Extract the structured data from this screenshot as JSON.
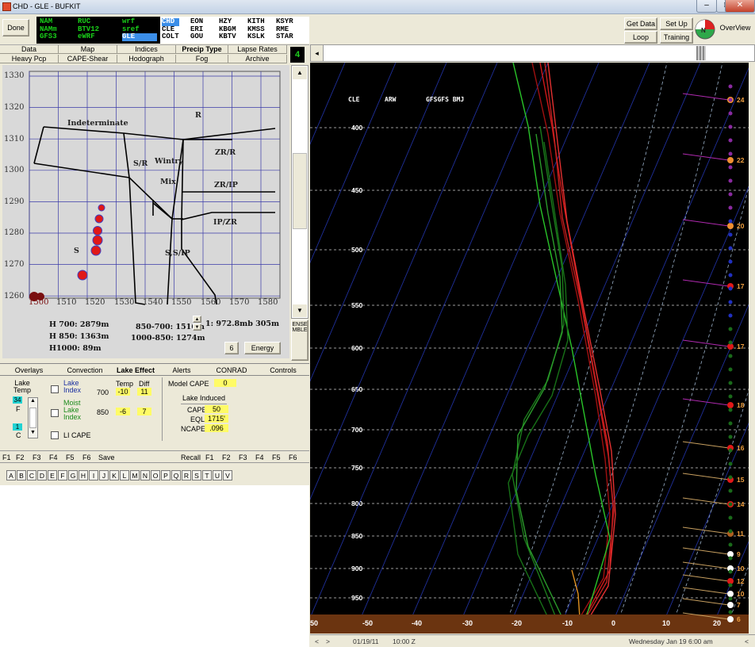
{
  "window": {
    "title": "CHD - GLE - BUFKIT",
    "minimize": "–",
    "maximize": "□",
    "close": "✕"
  },
  "toolbar": {
    "done": "Done",
    "models_col1": [
      "NAM",
      "NAMm",
      "GFS3"
    ],
    "models_col2": [
      "RUC",
      "BTV12",
      "eWRF"
    ],
    "models_col3": [
      "wrf",
      "sref",
      "GLE"
    ],
    "stations_col1": [
      "CHD",
      "CLE",
      "COLT"
    ],
    "stations_col2": [
      "EON",
      "ERI",
      "GOU"
    ],
    "stations_col3": [
      "HZY",
      "KBGM",
      "KBTV"
    ],
    "stations_col4": [
      "KITH",
      "KMSS",
      "KSLK"
    ],
    "stations_col5": [
      "KSYR",
      "RME",
      "STAR"
    ],
    "get_data": "Get Data",
    "loop": "Loop",
    "set_up": "Set Up",
    "training": "Training",
    "overview": "OverView"
  },
  "tabs_row1": [
    "Data",
    "Map",
    "Indices",
    "Precip Type",
    "Lapse Rates"
  ],
  "tabs_row2": [
    "Heavy Pcp",
    "CAPE-Shear",
    "Hodograph",
    "Fog",
    "Archive"
  ],
  "tab_badge": "4",
  "nomogram": {
    "y_ticks": [
      "1330",
      "1320",
      "1310",
      "1300",
      "1290",
      "1280",
      "1270",
      "1260"
    ],
    "x_ticks": [
      "1500",
      "1510",
      "1520",
      "1530",
      "1540",
      "1550",
      "1560",
      "1570",
      "1580"
    ],
    "regions": {
      "indeterminate": "Indeterminate",
      "r": "R",
      "sr": "S/R",
      "wintry": "Wintry",
      "mix": "Mix",
      "zrr": "ZR/R",
      "zrip": "ZR/IP",
      "ipzr": "IP/ZR",
      "ssip": "S,S/IP",
      "s": "S"
    },
    "stats": {
      "h700": "H 700: 2879m",
      "h850": "H 850: 1363m",
      "h1000": "H1000: 89m",
      "t850_700": "850-700: 1516m",
      "t1000_850": "1000-850: 1274m",
      "level": "1: 972.8mb 305m",
      "six": "6",
      "energy": "Energy"
    },
    "ensemble": "ENSEMBLE"
  },
  "lower_tabs": [
    "Overlays",
    "Convection",
    "Lake Effect",
    "Alerts",
    "CONRAD",
    "Controls"
  ],
  "lake": {
    "lake_temp_label": "Lake Temp",
    "f_value": "34",
    "f_unit": "F",
    "c_value": "1",
    "c_unit": "C",
    "lake_index": "Lake Index",
    "moist_lake_index": "Moist Lake Index",
    "li_cape": "LI CAPE",
    "temp_header": "Temp",
    "diff_header": "Diff",
    "row700_label": "700",
    "row700_temp": "-10",
    "row700_diff": "11",
    "row850_label": "850",
    "row850_temp": "-6",
    "row850_diff": "7",
    "model_cape_label": "Model CAPE",
    "model_cape_value": "0",
    "lake_induced": "Lake Induced",
    "cape_label": "CAPE",
    "cape_value": "50",
    "eql_label": "EQL",
    "eql_value": "1715'",
    "ncape_label": "NCAPE",
    "ncape_value": ".096"
  },
  "fkeys_left": [
    "F1",
    "F2",
    "F3",
    "F4",
    "F5",
    "F6"
  ],
  "save": "Save",
  "recall": "Recall",
  "fkeys_right": [
    "F1",
    "F2",
    "F3",
    "F4",
    "F5",
    "F6"
  ],
  "letters": [
    "A",
    "B",
    "C",
    "D",
    "E",
    "F",
    "G",
    "H",
    "I",
    "J",
    "K",
    "L",
    "M",
    "N",
    "O",
    "P",
    "Q",
    "R",
    "S",
    "T",
    "U",
    "V"
  ],
  "skewt": {
    "header": {
      "station": "CLE",
      "model": "ARW",
      "extra": "GFSGFS BMJ"
    },
    "pressure_labels": [
      "400",
      "450",
      "500",
      "550",
      "600",
      "650",
      "700",
      "750",
      "800",
      "850",
      "900",
      "950"
    ],
    "temp_labels": [
      "50",
      "-50",
      "-40",
      "-30",
      "-20",
      "-10",
      "0",
      "10",
      "20"
    ],
    "hour_labels": [
      "24",
      "22",
      "20",
      "17",
      "17",
      "18",
      "16",
      "15",
      "14",
      "11",
      "9",
      "10",
      "12",
      "10",
      "7",
      "6"
    ]
  },
  "status": {
    "nav_left": "<",
    "nav_right": ">",
    "date": "01/19/11",
    "time": "10:00 Z",
    "valid": "Wednesday  Jan 19 6:00 am",
    "right_arrow": "<"
  }
}
